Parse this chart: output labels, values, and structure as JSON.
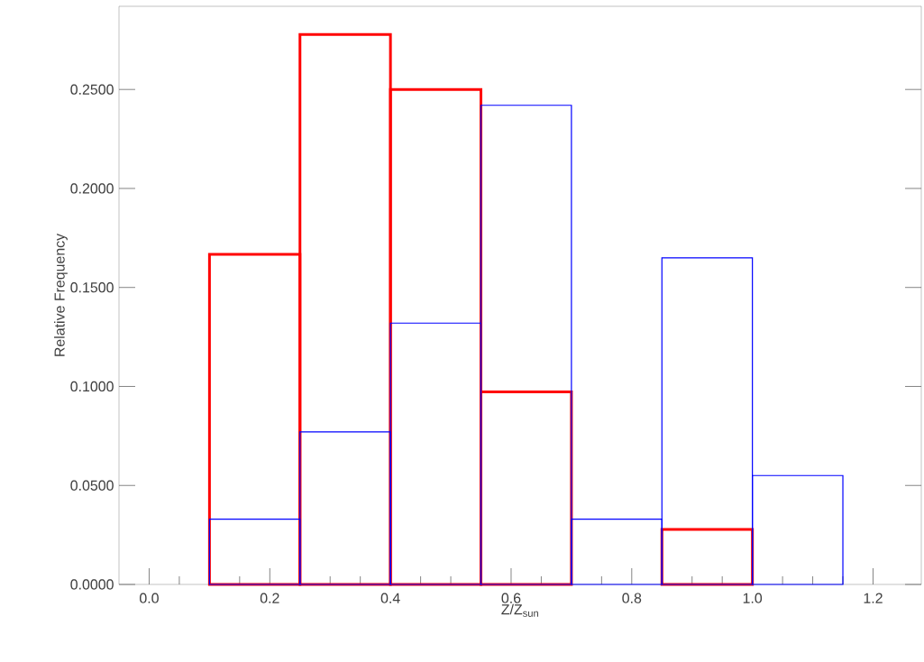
{
  "chart_data": {
    "type": "histogram",
    "xlabel": "Z/Z$_{sun}$",
    "ylabel": "Relative Frequency",
    "bins": [
      0.1,
      0.25,
      0.4,
      0.55,
      0.7,
      0.85,
      1.0,
      1.15
    ],
    "series": [
      {
        "color": "#ff0000",
        "values": [
          0.1667,
          0.2778,
          0.25,
          0.0972,
          0,
          0.0278,
          0
        ]
      },
      {
        "color": "#0000ff",
        "values": [
          0.033,
          0.077,
          0.132,
          0.242,
          0.033,
          0.165,
          0.055
        ]
      }
    ],
    "xlim": [
      -0.05,
      1.28
    ],
    "ylim": [
      0,
      0.292
    ],
    "xticks": [
      {
        "value": 0,
        "label": "0.0"
      },
      {
        "value": 0.2,
        "label": "0.2"
      },
      {
        "value": 0.4,
        "label": "0.4"
      },
      {
        "value": 0.6,
        "label": "0.6"
      },
      {
        "value": 0.8,
        "label": "0.8"
      },
      {
        "value": 1.0,
        "label": "1.0"
      },
      {
        "value": 1.2,
        "label": "1.2"
      }
    ],
    "yticks": [
      {
        "value": 0,
        "label": "0.0000"
      },
      {
        "value": 0.05,
        "label": "0.0500"
      },
      {
        "value": 0.1,
        "label": "0.1000"
      },
      {
        "value": 0.15,
        "label": "0.1500"
      },
      {
        "value": 0.2,
        "label": "0.2000"
      },
      {
        "value": 0.25,
        "label": "0.2500"
      }
    ],
    "grid": false
  }
}
